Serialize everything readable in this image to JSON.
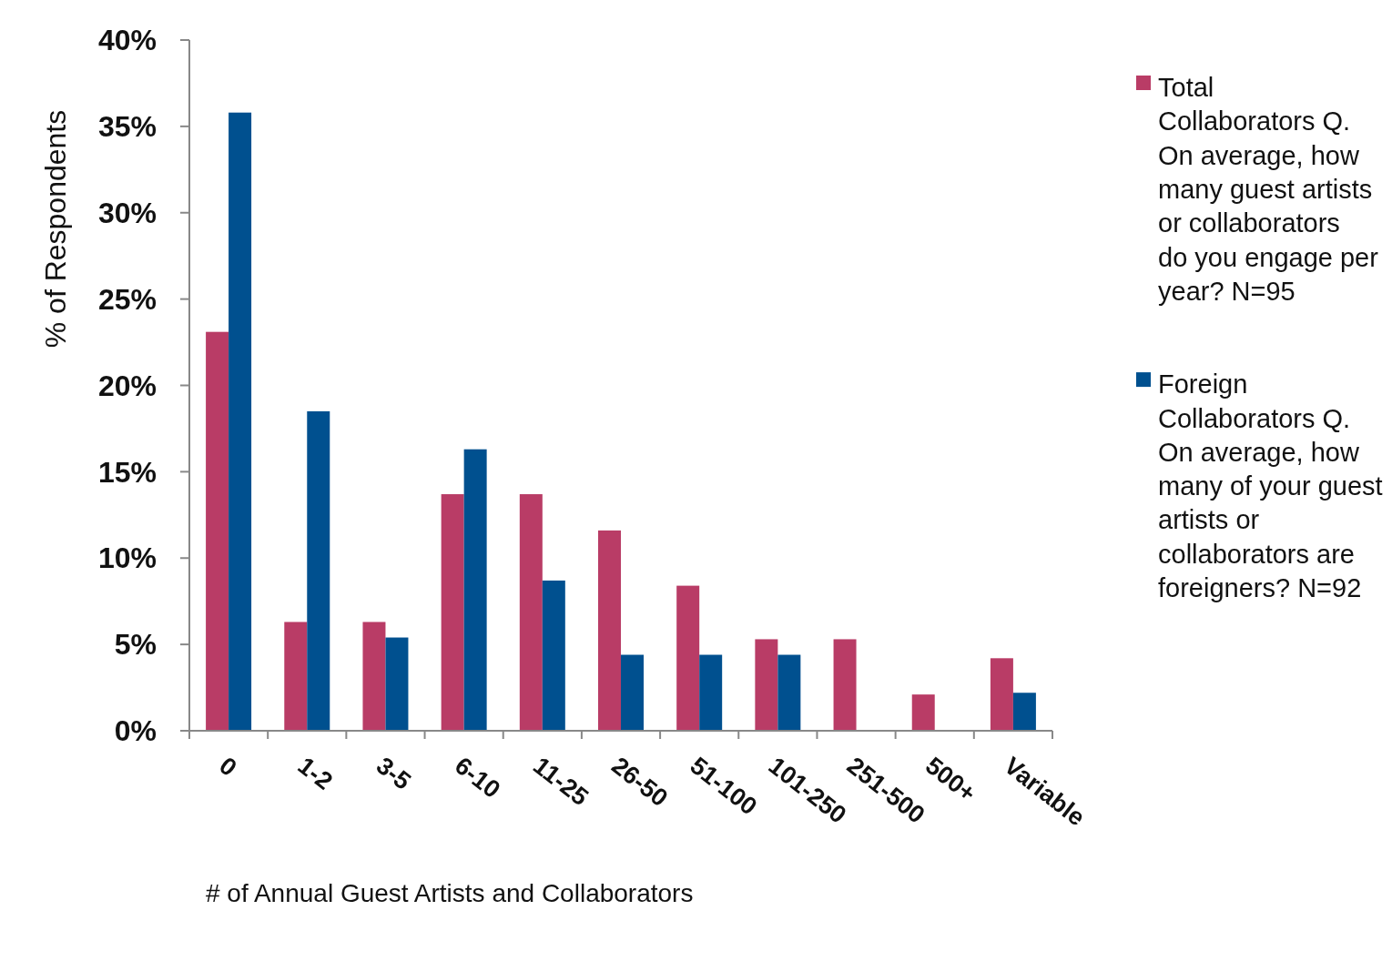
{
  "chart_data": {
    "type": "bar",
    "xlabel": "# of Annual Guest Artists and Collaborators",
    "ylabel": "% of Respondents",
    "categories": [
      "0",
      "1-2",
      "3-5",
      "6-10",
      "11-25",
      "26-50",
      "51-100",
      "101-250",
      "251-500",
      "500+",
      "Variable"
    ],
    "series": [
      {
        "name": "Total Collaborators Q. On average, how many guest artists or collaborators do you engage per year? N=95",
        "color": "#b93c66",
        "values": [
          23.1,
          6.3,
          6.3,
          13.7,
          13.7,
          11.6,
          8.4,
          5.3,
          5.3,
          2.1,
          4.2
        ]
      },
      {
        "name": "Foreign Collaborators Q. On average, how many of your guest artists or collaborators are foreigners? N=92",
        "color": "#00508f",
        "values": [
          35.8,
          18.5,
          5.4,
          16.3,
          8.7,
          4.4,
          4.4,
          4.4,
          0,
          0,
          2.2
        ]
      }
    ],
    "ylim": [
      0,
      40
    ],
    "yticks": [
      {
        "value": 0,
        "label": "0%"
      },
      {
        "value": 5,
        "label": "5%"
      },
      {
        "value": 10,
        "label": "10%"
      },
      {
        "value": 15,
        "label": "15%"
      },
      {
        "value": 20,
        "label": "20%"
      },
      {
        "value": 25,
        "label": "25%"
      },
      {
        "value": 30,
        "label": "30%"
      },
      {
        "value": 35,
        "label": "35%"
      },
      {
        "value": 40,
        "label": "40%"
      }
    ],
    "grid": false,
    "legend": "right"
  }
}
